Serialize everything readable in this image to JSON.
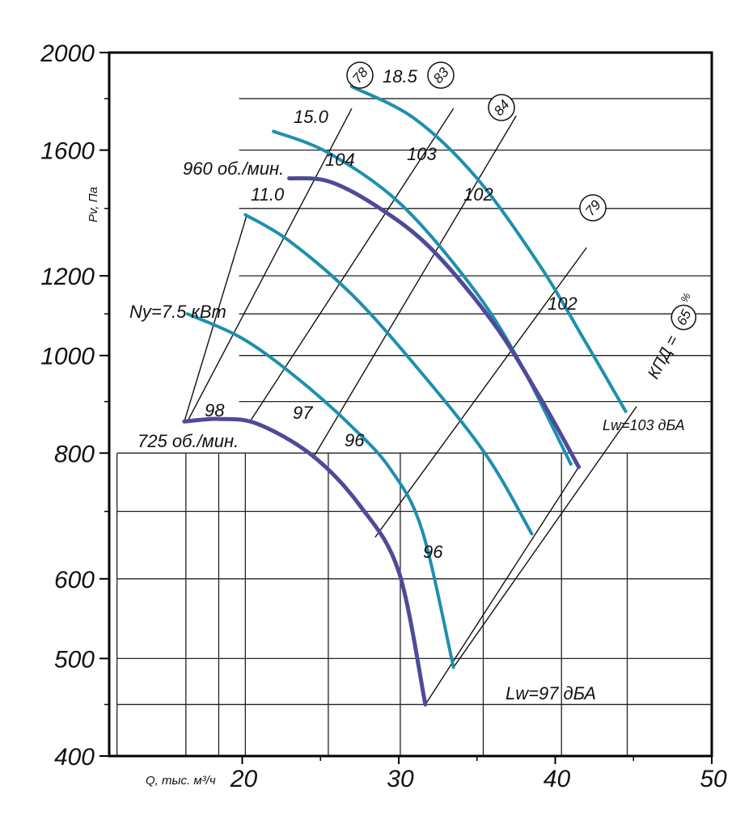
{
  "chart_data": {
    "type": "line",
    "xlabel": "Q, тыс. м³/ч",
    "ylabel": "Pv, Па",
    "x_ticks": [
      "20",
      "30",
      "40",
      "50"
    ],
    "y_ticks": [
      "2000",
      "1600",
      "1200",
      "1000",
      "800",
      "600",
      "500",
      "400"
    ],
    "grid": true,
    "y_scale": "log",
    "xlim": [
      11.5,
      50
    ],
    "ylim": [
      400,
      2000
    ],
    "speed_curves": [
      {
        "name": "960 об./мин.",
        "color": "#4f4a98",
        "points": [
          [
            23,
            1500
          ],
          [
            25.5,
            1490
          ],
          [
            28.5,
            1410
          ],
          [
            32,
            1280
          ],
          [
            36,
            1080
          ],
          [
            39,
            910
          ],
          [
            41.5,
            775
          ]
        ]
      },
      {
        "name": "725 об./мин.",
        "color": "#4f4a98",
        "points": [
          [
            16.3,
            860
          ],
          [
            18.5,
            865
          ],
          [
            21,
            855
          ],
          [
            24.5,
            795
          ],
          [
            27.5,
            710
          ],
          [
            30,
            610
          ],
          [
            31.7,
            450
          ]
        ]
      }
    ],
    "power_curves": [
      {
        "name": "18.5",
        "color": "#1e8fae",
        "points": [
          [
            27,
            1850
          ],
          [
            31,
            1720
          ],
          [
            35,
            1500
          ],
          [
            39,
            1230
          ],
          [
            41.8,
            1040
          ],
          [
            44.5,
            880
          ]
        ]
      },
      {
        "name": "15.0",
        "color": "#1e8fae",
        "points": [
          [
            22,
            1670
          ],
          [
            25.5,
            1590
          ],
          [
            30,
            1420
          ],
          [
            34.5,
            1180
          ],
          [
            37.5,
            1000
          ],
          [
            41,
            780
          ]
        ]
      },
      {
        "name": "11.0",
        "color": "#1e8fae",
        "points": [
          [
            20.2,
            1380
          ],
          [
            23,
            1300
          ],
          [
            27,
            1150
          ],
          [
            31,
            980
          ],
          [
            35.5,
            800
          ],
          [
            38.5,
            665
          ]
        ]
      },
      {
        "name": "Ny=7.5 кВт",
        "color": "#1e8fae",
        "points": [
          [
            16.5,
            1100
          ],
          [
            20,
            1040
          ],
          [
            23.5,
            950
          ],
          [
            27,
            850
          ],
          [
            29.5,
            770
          ],
          [
            31.5,
            670
          ],
          [
            33.5,
            490
          ]
        ]
      }
    ],
    "efficiency_lines": [
      {
        "label": "78",
        "points": [
          [
            16.5,
            860
          ],
          [
            27,
            1760
          ]
        ]
      },
      {
        "label": "83",
        "points": [
          [
            20.5,
            860
          ],
          [
            33.5,
            1760
          ]
        ]
      },
      {
        "label": "84",
        "points": [
          [
            24.5,
            790
          ],
          [
            37.5,
            1730
          ]
        ]
      },
      {
        "label": "79",
        "points": [
          [
            28.5,
            660
          ],
          [
            42,
            1280
          ]
        ]
      },
      {
        "label": "КПД=65%",
        "points": [
          [
            33.5,
            490
          ],
          [
            45.2,
            890
          ]
        ]
      }
    ],
    "noise_labels": [
      "98",
      "97",
      "96",
      "96",
      "104",
      "103",
      "102",
      "102"
    ],
    "lw_labels": [
      "Lw=97 дБА",
      "Lw=103 дБА"
    ]
  },
  "labels": {
    "rpm_high": "960 об./мин.",
    "rpm_low": "725 об./мин.",
    "p_185": "18.5",
    "p_150": "15.0",
    "p_110": "11.0",
    "p_75": "Ny=7.5 кВт",
    "eff_78": "78",
    "eff_83": "83",
    "eff_84": "84",
    "eff_79": "79",
    "eff_65": "65",
    "kpd_prefix": "КПД =",
    "kpd_suffix": "%",
    "n98": "98",
    "n97": "97",
    "n96a": "96",
    "n96b": "96",
    "n104": "104",
    "n103": "103",
    "n102a": "102",
    "n102b": "102",
    "lw97": "Lw=97 дБА",
    "lw103": "Lw=103 дБА",
    "ylabel": "Pv, Па",
    "xlabel": "Q, тыс. м³/ч"
  }
}
